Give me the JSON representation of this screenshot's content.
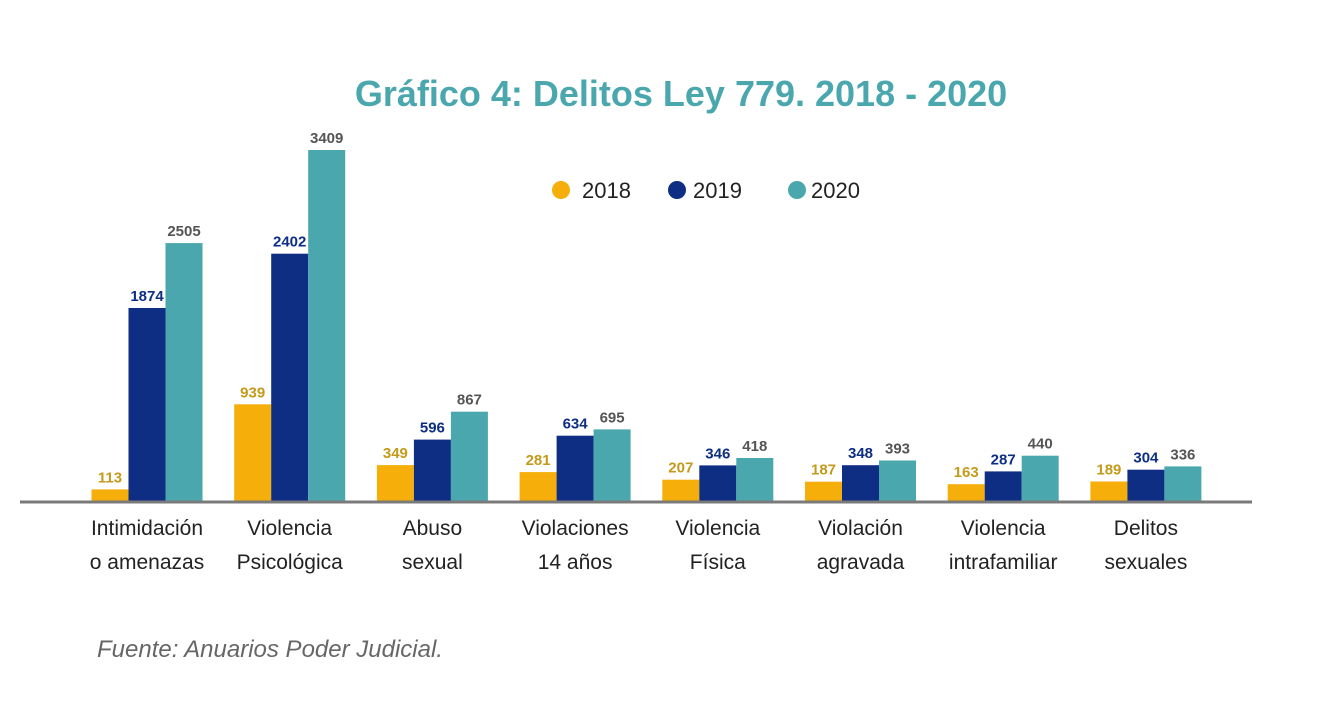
{
  "title": "Gráfico 4: Delitos Ley 779. 2018 - 2020",
  "source": "Fuente: Anuarios Poder Judicial.",
  "colors": {
    "2018": "#f5ae0a",
    "2019": "#0d2e83",
    "2020": "#4aa7ad",
    "label_2018": "#c49a1a",
    "label_2019": "#0d2e83",
    "label_2020": "#555555",
    "axis": "#7a7a7a"
  },
  "chart_data": {
    "type": "bar",
    "title": "Gráfico 4: Delitos Ley 779. 2018 - 2020",
    "categories": [
      [
        "Intimidación",
        "o amenazas"
      ],
      [
        "Violencia",
        "Psicológica"
      ],
      [
        "Abuso",
        "sexual"
      ],
      [
        "Violaciones",
        "14 años"
      ],
      [
        "Violencia",
        "Física"
      ],
      [
        "Violación",
        "agravada"
      ],
      [
        "Violencia",
        "intrafamiliar"
      ],
      [
        "Delitos",
        "sexuales"
      ]
    ],
    "series": [
      {
        "name": "2018",
        "values": [
          113,
          939,
          349,
          281,
          207,
          187,
          163,
          189
        ]
      },
      {
        "name": "2019",
        "values": [
          1874,
          2402,
          596,
          634,
          346,
          348,
          287,
          304
        ]
      },
      {
        "name": "2020",
        "values": [
          2505,
          3409,
          867,
          695,
          418,
          393,
          440,
          336
        ]
      }
    ],
    "ylim": [
      0,
      3409
    ],
    "grid": false,
    "legend": "top-center"
  }
}
